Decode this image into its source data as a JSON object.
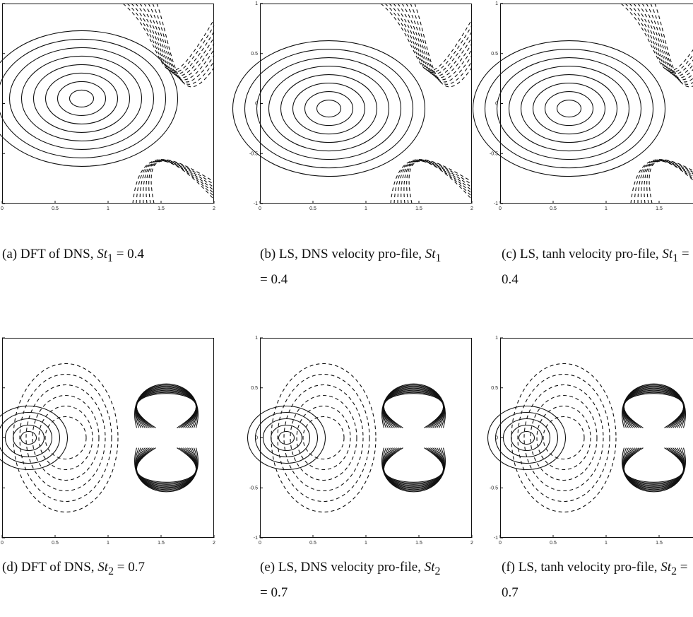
{
  "xticks": [
    "0",
    "0.5",
    "1",
    "1.5",
    "2"
  ],
  "yticks": [
    "1",
    "0.5",
    "0",
    "-0.5",
    "-1"
  ],
  "panels": [
    {
      "label": "(a)",
      "text": "DFT of DNS,",
      "var": "St",
      "sub": "1",
      "rest": "= 0.4"
    },
    {
      "label": "(b)",
      "text": "LS, DNS velocity pro-file,",
      "var": "St",
      "sub": "1",
      "rest": "= 0.4"
    },
    {
      "label": "(c)",
      "text": "LS, tanh velocity pro-file,",
      "var": "St",
      "sub": "1",
      "rest": "= 0.4"
    },
    {
      "label": "(d)",
      "text": "DFT of DNS,",
      "var": "St",
      "sub": "2",
      "rest": "= 0.7"
    },
    {
      "label": "(e)",
      "text": "LS, DNS velocity pro-file,",
      "var": "St",
      "sub": "2",
      "rest": "= 0.7"
    },
    {
      "label": "(f)",
      "text": "LS, tanh velocity pro-file,",
      "var": "St",
      "sub": "2",
      "rest": "= 0.7"
    }
  ]
}
